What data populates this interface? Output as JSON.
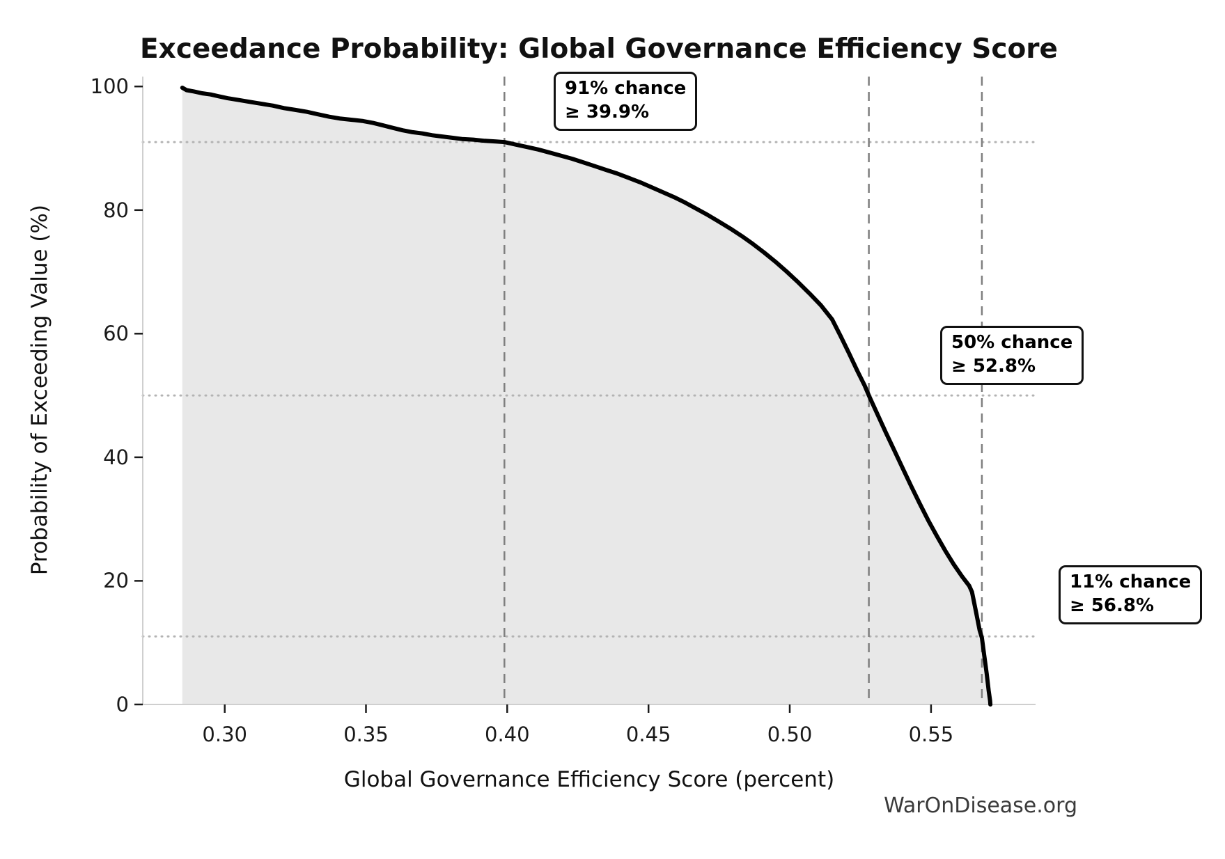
{
  "title": "Exceedance Probability: Global Governance Efficiency Score",
  "watermark": "WarOnDisease.org",
  "chart_data": {
    "type": "line",
    "title": "Exceedance Probability: Global Governance Efficiency Score",
    "xlabel": "Global Governance Efficiency Score (percent)",
    "ylabel": "Probability of Exceeding Value (%)",
    "xlim": [
      0.271,
      0.587
    ],
    "ylim": [
      0,
      101.6
    ],
    "x_ticks": [
      0.3,
      0.35,
      0.4,
      0.45,
      0.5,
      0.55
    ],
    "x_tick_labels": [
      "0.30",
      "0.35",
      "0.40",
      "0.45",
      "0.50",
      "0.55"
    ],
    "y_ticks": [
      0,
      20,
      40,
      60,
      80,
      100
    ],
    "y_tick_labels": [
      "0",
      "20",
      "40",
      "60",
      "80",
      "100"
    ],
    "grid": "off",
    "legend": "none",
    "colors": {
      "curve": "#000000",
      "fill": "#e8e8e8",
      "dashed_reference": "#7f7f7f",
      "dotted_reference": "#b3b3b3",
      "spine": "#cfcfcf",
      "tick": "#1a1a1a",
      "watermark_text": "#3a3a3a"
    },
    "reference_lines": {
      "vertical_dashed_x": [
        0.399,
        0.528,
        0.568
      ],
      "horizontal_dotted_y": [
        91,
        50,
        11
      ]
    },
    "annotations": [
      {
        "chance_percent": 91,
        "threshold_percent": 39.9,
        "line1": "91% chance",
        "line2": "≥ 39.9%"
      },
      {
        "chance_percent": 50,
        "threshold_percent": 52.8,
        "line1": "50% chance",
        "line2": "≥ 52.8%"
      },
      {
        "chance_percent": 11,
        "threshold_percent": 56.8,
        "line1": "11% chance",
        "line2": "≥ 56.8%"
      }
    ],
    "series": [
      {
        "name": "exceedance_curve",
        "points": [
          [
            0.285,
            99.8
          ],
          [
            0.2865,
            99.4
          ],
          [
            0.289,
            99.2
          ],
          [
            0.292,
            98.9
          ],
          [
            0.295,
            98.7
          ],
          [
            0.298,
            98.4
          ],
          [
            0.301,
            98.1
          ],
          [
            0.305,
            97.8
          ],
          [
            0.309,
            97.5
          ],
          [
            0.313,
            97.2
          ],
          [
            0.317,
            96.9
          ],
          [
            0.321,
            96.5
          ],
          [
            0.325,
            96.2
          ],
          [
            0.329,
            95.9
          ],
          [
            0.333,
            95.5
          ],
          [
            0.337,
            95.1
          ],
          [
            0.341,
            94.8
          ],
          [
            0.345,
            94.6
          ],
          [
            0.349,
            94.4
          ],
          [
            0.3525,
            94.1
          ],
          [
            0.356,
            93.7
          ],
          [
            0.3595,
            93.3
          ],
          [
            0.363,
            92.9
          ],
          [
            0.3665,
            92.6
          ],
          [
            0.37,
            92.4
          ],
          [
            0.3735,
            92.1
          ],
          [
            0.377,
            91.9
          ],
          [
            0.3805,
            91.7
          ],
          [
            0.384,
            91.5
          ],
          [
            0.388,
            91.4
          ],
          [
            0.392,
            91.2
          ],
          [
            0.396,
            91.1
          ],
          [
            0.399,
            91.0
          ],
          [
            0.403,
            90.6
          ],
          [
            0.407,
            90.2
          ],
          [
            0.411,
            89.8
          ],
          [
            0.415,
            89.3
          ],
          [
            0.419,
            88.8
          ],
          [
            0.423,
            88.3
          ],
          [
            0.427,
            87.7
          ],
          [
            0.431,
            87.1
          ],
          [
            0.435,
            86.5
          ],
          [
            0.439,
            85.9
          ],
          [
            0.443,
            85.2
          ],
          [
            0.447,
            84.5
          ],
          [
            0.451,
            83.7
          ],
          [
            0.455,
            82.9
          ],
          [
            0.459,
            82.1
          ],
          [
            0.463,
            81.2
          ],
          [
            0.467,
            80.2
          ],
          [
            0.471,
            79.2
          ],
          [
            0.475,
            78.1
          ],
          [
            0.479,
            77.0
          ],
          [
            0.483,
            75.8
          ],
          [
            0.487,
            74.5
          ],
          [
            0.491,
            73.1
          ],
          [
            0.495,
            71.6
          ],
          [
            0.499,
            70.0
          ],
          [
            0.503,
            68.3
          ],
          [
            0.507,
            66.5
          ],
          [
            0.511,
            64.6
          ],
          [
            0.515,
            62.3
          ],
          [
            0.518,
            59.6
          ],
          [
            0.521,
            56.8
          ],
          [
            0.524,
            53.9
          ],
          [
            0.5265,
            51.6
          ],
          [
            0.528,
            50.0
          ],
          [
            0.531,
            47.0
          ],
          [
            0.534,
            44.0
          ],
          [
            0.537,
            41.1
          ],
          [
            0.54,
            38.2
          ],
          [
            0.543,
            35.3
          ],
          [
            0.546,
            32.5
          ],
          [
            0.549,
            29.8
          ],
          [
            0.552,
            27.3
          ],
          [
            0.555,
            24.9
          ],
          [
            0.558,
            22.7
          ],
          [
            0.561,
            20.7
          ],
          [
            0.5635,
            19.2
          ],
          [
            0.5645,
            18.2
          ],
          [
            0.566,
            14.8
          ],
          [
            0.5672,
            12.0
          ],
          [
            0.568,
            10.8
          ],
          [
            0.5688,
            8.0
          ],
          [
            0.5697,
            5.0
          ],
          [
            0.5704,
            2.2
          ],
          [
            0.5709,
            0.6
          ],
          [
            0.571,
            0.0
          ]
        ]
      }
    ]
  }
}
